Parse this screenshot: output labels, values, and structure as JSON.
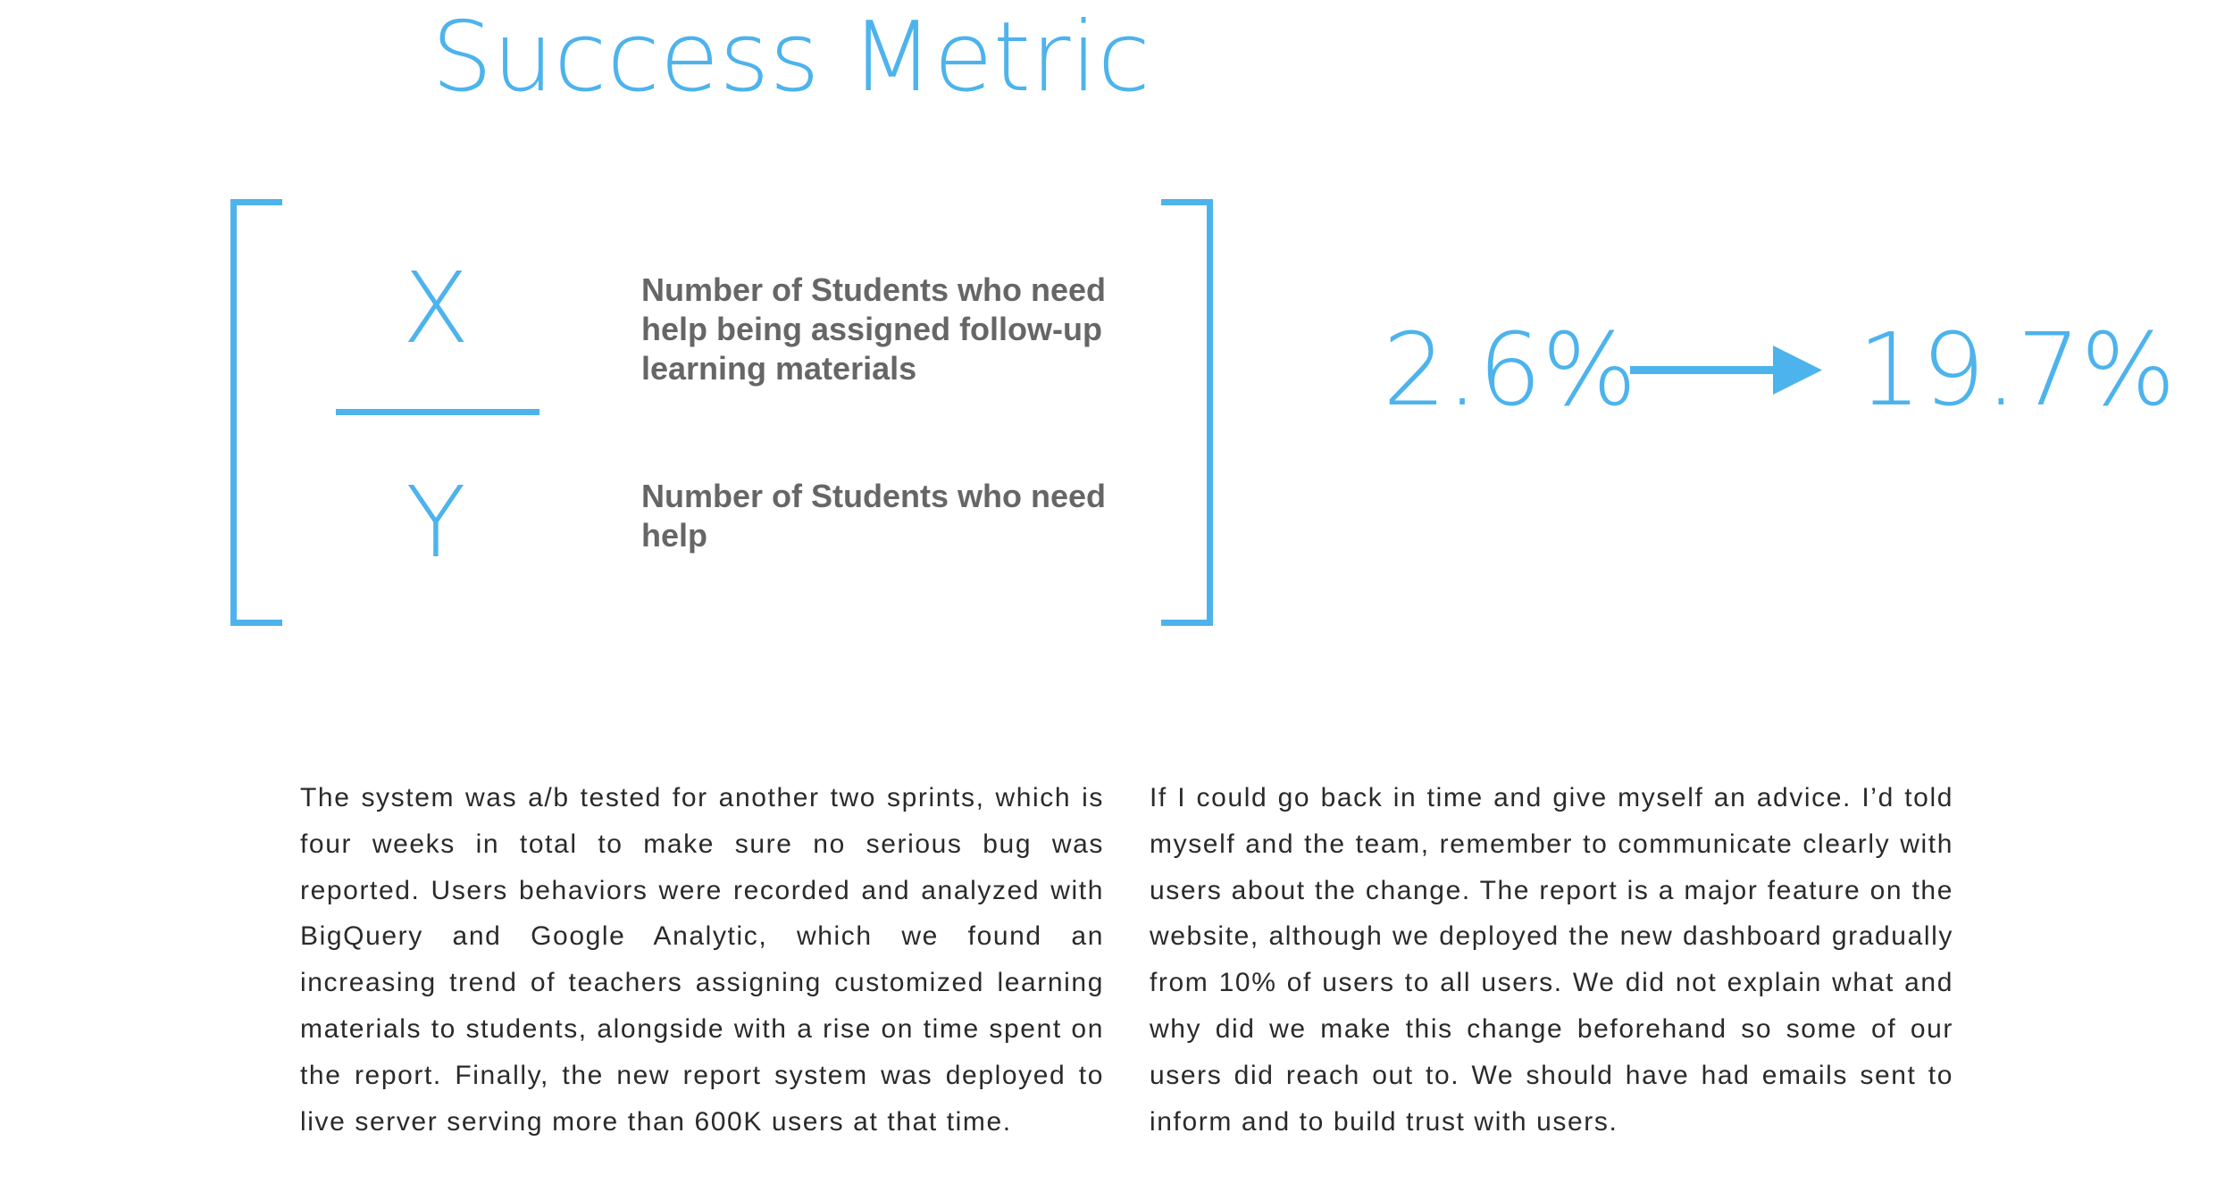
{
  "title": "Success Metric",
  "formula": {
    "numerator_symbol": "X",
    "denominator_symbol": "Y",
    "numerator_description": "Number of Students who need help being assigned follow-up learning materials",
    "denominator_description": "Number of Students who need help"
  },
  "metric": {
    "before": "2.6%",
    "after": "19.7%"
  },
  "colors": {
    "accent": "#4db3ec",
    "description_text": "#666666",
    "body_text": "#2a2a2a"
  },
  "paragraphs": {
    "left": "The system was a/b tested for another two sprints, which is four weeks in total to make sure no serious bug was reported. Users behaviors were recorded and analyzed with BigQuery and Google Analytic, which we found an increasing trend of teachers assigning customized learning materials to students, alongside with a rise on time spent on the report. Finally, the new report system was deployed to live server serving more than 600K users at that time.",
    "right": "If I could go back in time and give myself an advice. I’d told myself and the team, remember to communicate clearly with users about the change. The report is a major feature on the website, although we deployed the new dashboard gradually from 10% of users to all users. We did not explain what and why did we make this change beforehand so some of our users did reach out to. We should have had emails sent to inform and to build trust with users."
  }
}
